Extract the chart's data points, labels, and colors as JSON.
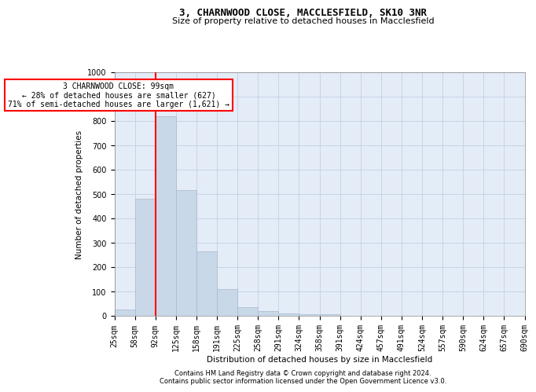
{
  "title": "3, CHARNWOOD CLOSE, MACCLESFIELD, SK10 3NR",
  "subtitle": "Size of property relative to detached houses in Macclesfield",
  "xlabel": "Distribution of detached houses by size in Macclesfield",
  "ylabel": "Number of detached properties",
  "footer_line1": "Contains HM Land Registry data © Crown copyright and database right 2024.",
  "footer_line2": "Contains public sector information licensed under the Open Government Licence v3.0.",
  "bins": [
    "25sqm",
    "58sqm",
    "92sqm",
    "125sqm",
    "158sqm",
    "191sqm",
    "225sqm",
    "258sqm",
    "291sqm",
    "324sqm",
    "358sqm",
    "391sqm",
    "424sqm",
    "457sqm",
    "491sqm",
    "524sqm",
    "557sqm",
    "590sqm",
    "624sqm",
    "657sqm",
    "690sqm"
  ],
  "bar_heights": [
    25,
    480,
    820,
    515,
    265,
    110,
    35,
    20,
    10,
    5,
    5,
    0,
    0,
    0,
    0,
    0,
    0,
    0,
    0,
    0
  ],
  "property_size_label": "99sqm",
  "vline_position": 2.0,
  "annotation_line1": "3 CHARNWOOD CLOSE: 99sqm",
  "annotation_line2": "← 28% of detached houses are smaller (627)",
  "annotation_line3": "71% of semi-detached houses are larger (1,621) →",
  "bar_color": "#c8d8e8",
  "bar_edge_color": "#a8b8cc",
  "vline_color": "red",
  "grid_color": "#c8d4e4",
  "bg_color": "#e4ecf8",
  "ylim": [
    0,
    1000
  ],
  "title_fontsize": 9,
  "subtitle_fontsize": 8,
  "axis_fontsize": 7.5,
  "tick_fontsize": 7,
  "footer_fontsize": 6
}
